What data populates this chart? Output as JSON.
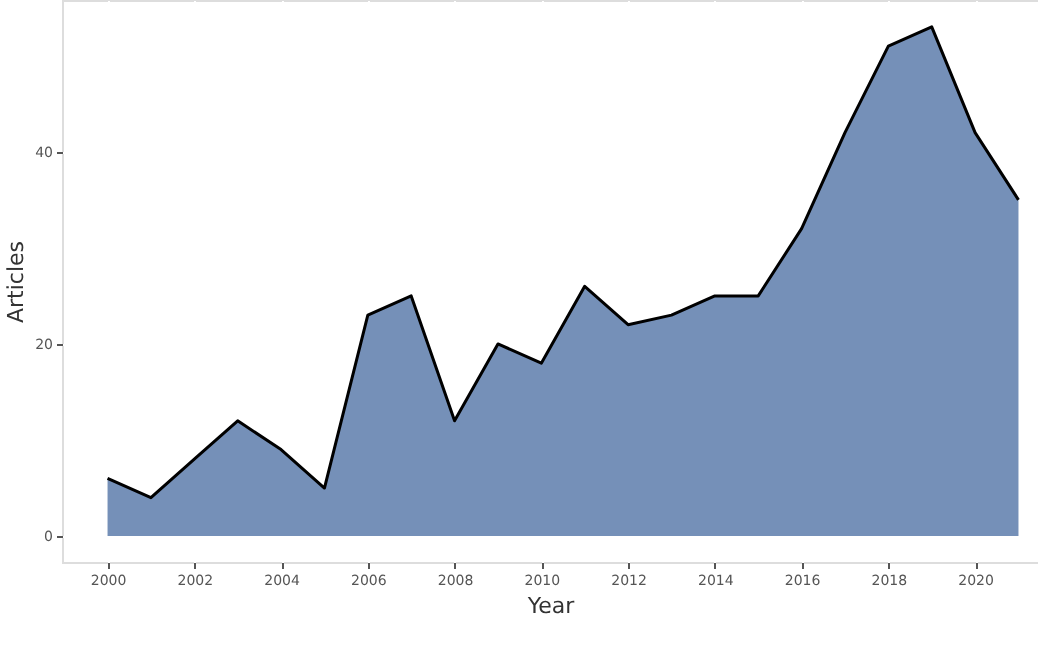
{
  "chart_data": {
    "type": "area",
    "xlabel": "Year",
    "ylabel": "Articles",
    "x": [
      2000,
      2001,
      2002,
      2003,
      2004,
      2005,
      2006,
      2007,
      2008,
      2009,
      2010,
      2011,
      2012,
      2013,
      2014,
      2015,
      2016,
      2017,
      2018,
      2019,
      2020,
      2021
    ],
    "series": [
      {
        "color": "#7590b8",
        "values": [
          6,
          4,
          8,
          12,
          9,
          5,
          23,
          25,
          12,
          20,
          18,
          26,
          22,
          23,
          25,
          25,
          32,
          42,
          51,
          53,
          42,
          35
        ]
      }
    ],
    "xlim": [
      1998.95,
      2021.45
    ],
    "xticks": [
      2000,
      2002,
      2004,
      2006,
      2008,
      2010,
      2012,
      2014,
      2016,
      2018,
      2020
    ],
    "ylim": [
      -2.7,
      55.8
    ],
    "yticks": [
      0,
      20,
      40
    ],
    "grid": true
  }
}
